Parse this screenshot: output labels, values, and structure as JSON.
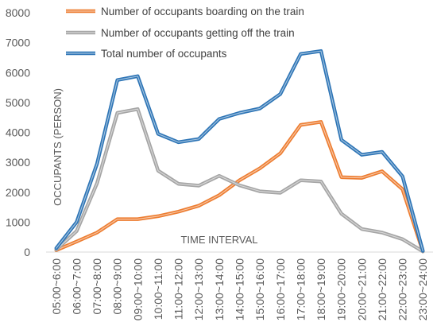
{
  "chart_data": {
    "type": "line",
    "xlabel": "TIME INTERVAL",
    "ylabel": "OCCUPANTS (PERSON)",
    "ylim": [
      0,
      8000
    ],
    "yticks": [
      0,
      1000,
      2000,
      3000,
      4000,
      5000,
      6000,
      7000,
      8000
    ],
    "grid": false,
    "legend_position": "top-left",
    "categories": [
      "05:00~6:00",
      "06:00~7:00",
      "07:00~8:00",
      "08:00~9:00",
      "09:00~10:00",
      "10:00~11:00",
      "11:00~12:00",
      "12:00~13:00",
      "13:00~14:00",
      "14:00~15:00",
      "15:00~16:00",
      "16:00~17:00",
      "17:00~18:00",
      "18:00~19:00",
      "19:00~20:00",
      "20:00~21:00",
      "21:00~22:00",
      "22:00~23:00",
      "23:00~24:00"
    ],
    "series": [
      {
        "name": "Number of occupants boarding on the train",
        "color": "#ED7D31",
        "values": [
          60,
          350,
          650,
          1100,
          1100,
          1200,
          1350,
          1550,
          1900,
          2400,
          2800,
          3300,
          4250,
          4350,
          2500,
          2480,
          2700,
          2100,
          20
        ]
      },
      {
        "name": "Number of occupants getting off the train",
        "color": "#A5A5A5",
        "values": [
          80,
          700,
          2300,
          4650,
          4780,
          2720,
          2280,
          2220,
          2550,
          2230,
          2030,
          1980,
          2400,
          2360,
          1280,
          770,
          650,
          430,
          20
        ]
      },
      {
        "name": "Total number of occupants",
        "color": "#2E75B6",
        "values": [
          130,
          1000,
          2950,
          5750,
          5880,
          3950,
          3670,
          3780,
          4450,
          4650,
          4800,
          5280,
          6620,
          6720,
          3750,
          3250,
          3350,
          2530,
          40
        ]
      }
    ]
  }
}
